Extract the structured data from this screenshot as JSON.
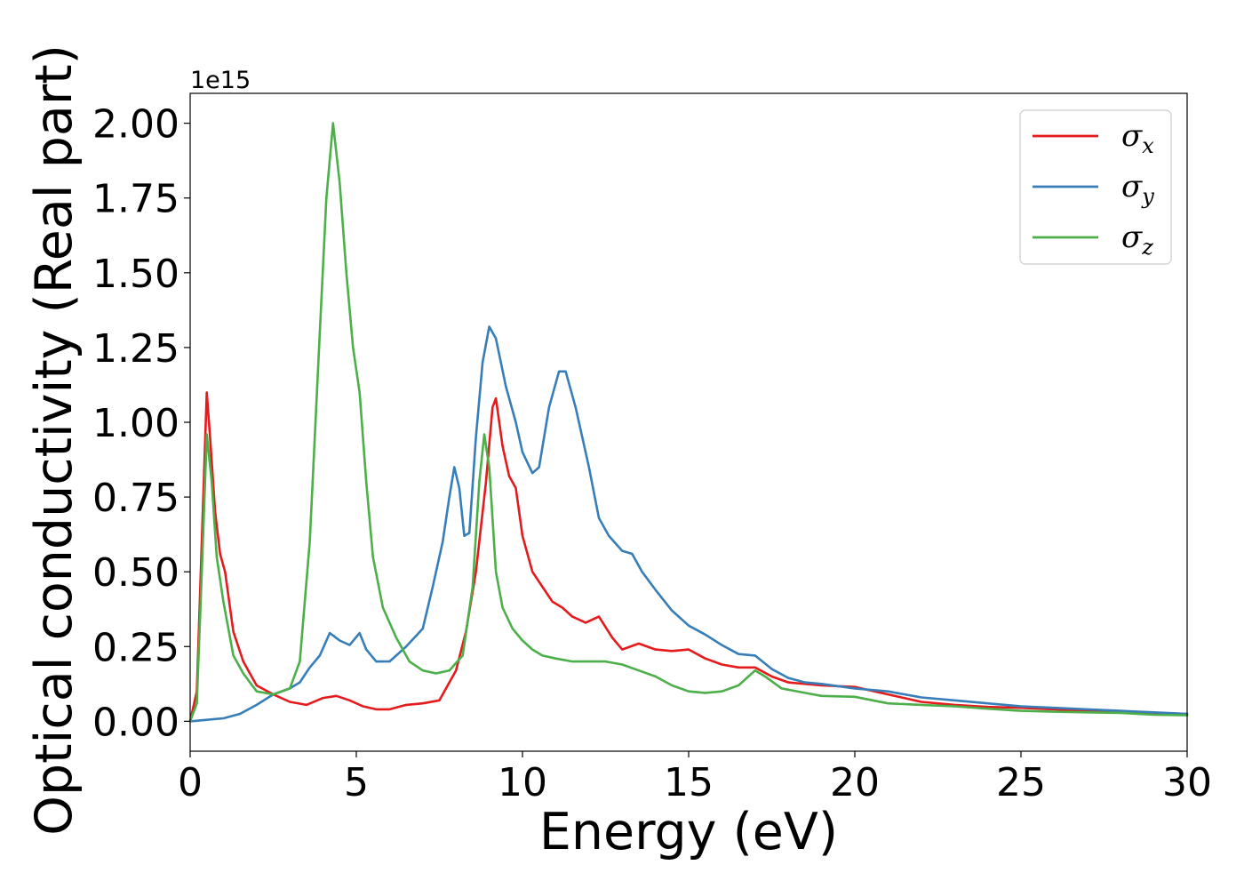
{
  "chart_data": {
    "type": "line",
    "title": "",
    "xlabel": "Energy (eV)",
    "ylabel": "Optical conductivity (Real part)",
    "y_offset_label": "1e15",
    "xlim": [
      0,
      30
    ],
    "ylim": [
      -0.1,
      2.1
    ],
    "x_ticks": [
      0,
      5,
      10,
      15,
      20,
      25,
      30
    ],
    "x_tick_labels": [
      "0",
      "5",
      "10",
      "15",
      "20",
      "25",
      "30"
    ],
    "y_ticks": [
      0,
      0.25,
      0.5,
      0.75,
      1.0,
      1.25,
      1.5,
      1.75,
      2.0
    ],
    "y_tick_labels": [
      "0.00",
      "0.25",
      "0.50",
      "0.75",
      "1.00",
      "1.25",
      "1.50",
      "1.75",
      "2.00"
    ],
    "grid": false,
    "legend_position": "top-right",
    "series": [
      {
        "name": "σx",
        "symbol": "σ",
        "subscript": "x",
        "color": "#e41a1c",
        "points": [
          [
            0,
            0
          ],
          [
            0.2,
            0.1
          ],
          [
            0.35,
            0.6
          ],
          [
            0.5,
            1.1
          ],
          [
            0.6,
            0.95
          ],
          [
            0.75,
            0.7
          ],
          [
            0.9,
            0.56
          ],
          [
            1.05,
            0.5
          ],
          [
            1.3,
            0.3
          ],
          [
            1.6,
            0.2
          ],
          [
            2,
            0.12
          ],
          [
            2.5,
            0.09
          ],
          [
            3,
            0.065
          ],
          [
            3.5,
            0.055
          ],
          [
            4,
            0.078
          ],
          [
            4.4,
            0.085
          ],
          [
            4.8,
            0.07
          ],
          [
            5.2,
            0.05
          ],
          [
            5.6,
            0.04
          ],
          [
            6,
            0.04
          ],
          [
            6.5,
            0.055
          ],
          [
            7,
            0.06
          ],
          [
            7.5,
            0.07
          ],
          [
            8,
            0.17
          ],
          [
            8.3,
            0.3
          ],
          [
            8.6,
            0.5
          ],
          [
            8.9,
            0.8
          ],
          [
            9.1,
            1.05
          ],
          [
            9.2,
            1.08
          ],
          [
            9.4,
            0.92
          ],
          [
            9.6,
            0.82
          ],
          [
            9.8,
            0.78
          ],
          [
            10,
            0.62
          ],
          [
            10.3,
            0.5
          ],
          [
            10.6,
            0.45
          ],
          [
            10.9,
            0.4
          ],
          [
            11.2,
            0.38
          ],
          [
            11.5,
            0.35
          ],
          [
            11.9,
            0.33
          ],
          [
            12.3,
            0.35
          ],
          [
            12.7,
            0.28
          ],
          [
            13,
            0.24
          ],
          [
            13.5,
            0.26
          ],
          [
            14,
            0.24
          ],
          [
            14.5,
            0.235
          ],
          [
            15,
            0.24
          ],
          [
            15.5,
            0.21
          ],
          [
            16,
            0.19
          ],
          [
            16.5,
            0.18
          ],
          [
            17,
            0.18
          ],
          [
            17.5,
            0.15
          ],
          [
            18,
            0.13
          ],
          [
            19,
            0.12
          ],
          [
            20,
            0.115
          ],
          [
            21,
            0.09
          ],
          [
            22,
            0.065
          ],
          [
            23,
            0.055
          ],
          [
            24,
            0.048
          ],
          [
            25,
            0.045
          ],
          [
            26,
            0.04
          ],
          [
            27,
            0.035
          ],
          [
            28,
            0.032
          ],
          [
            29,
            0.028
          ],
          [
            30,
            0.025
          ]
        ]
      },
      {
        "name": "σy",
        "symbol": "σ",
        "subscript": "y",
        "color": "#377eb8",
        "points": [
          [
            0,
            0
          ],
          [
            0.5,
            0.005
          ],
          [
            1,
            0.01
          ],
          [
            1.5,
            0.025
          ],
          [
            2,
            0.055
          ],
          [
            2.5,
            0.09
          ],
          [
            3,
            0.11
          ],
          [
            3.3,
            0.13
          ],
          [
            3.6,
            0.18
          ],
          [
            3.9,
            0.22
          ],
          [
            4.2,
            0.295
          ],
          [
            4.5,
            0.27
          ],
          [
            4.8,
            0.255
          ],
          [
            5.1,
            0.295
          ],
          [
            5.3,
            0.24
          ],
          [
            5.6,
            0.2
          ],
          [
            6,
            0.2
          ],
          [
            6.5,
            0.25
          ],
          [
            7,
            0.31
          ],
          [
            7.3,
            0.45
          ],
          [
            7.6,
            0.6
          ],
          [
            7.8,
            0.75
          ],
          [
            7.95,
            0.85
          ],
          [
            8.1,
            0.78
          ],
          [
            8.25,
            0.62
          ],
          [
            8.4,
            0.63
          ],
          [
            8.6,
            0.95
          ],
          [
            8.8,
            1.2
          ],
          [
            9,
            1.32
          ],
          [
            9.2,
            1.28
          ],
          [
            9.5,
            1.12
          ],
          [
            9.8,
            1.0
          ],
          [
            10,
            0.9
          ],
          [
            10.3,
            0.83
          ],
          [
            10.5,
            0.85
          ],
          [
            10.8,
            1.05
          ],
          [
            11.1,
            1.17
          ],
          [
            11.3,
            1.17
          ],
          [
            11.6,
            1.05
          ],
          [
            12,
            0.85
          ],
          [
            12.3,
            0.68
          ],
          [
            12.6,
            0.62
          ],
          [
            13,
            0.57
          ],
          [
            13.3,
            0.56
          ],
          [
            13.6,
            0.5
          ],
          [
            14,
            0.44
          ],
          [
            14.5,
            0.37
          ],
          [
            15,
            0.32
          ],
          [
            15.5,
            0.29
          ],
          [
            16,
            0.255
          ],
          [
            16.5,
            0.225
          ],
          [
            17,
            0.22
          ],
          [
            17.5,
            0.175
          ],
          [
            18,
            0.145
          ],
          [
            18.5,
            0.13
          ],
          [
            19,
            0.125
          ],
          [
            20,
            0.11
          ],
          [
            21,
            0.1
          ],
          [
            22,
            0.08
          ],
          [
            23,
            0.07
          ],
          [
            24,
            0.06
          ],
          [
            25,
            0.05
          ],
          [
            26,
            0.045
          ],
          [
            27,
            0.04
          ],
          [
            28,
            0.035
          ],
          [
            29,
            0.03
          ],
          [
            30,
            0.025
          ]
        ]
      },
      {
        "name": "σz",
        "symbol": "σ",
        "subscript": "z",
        "color": "#4daf4a",
        "points": [
          [
            0,
            0
          ],
          [
            0.2,
            0.06
          ],
          [
            0.35,
            0.5
          ],
          [
            0.5,
            0.96
          ],
          [
            0.65,
            0.8
          ],
          [
            0.8,
            0.55
          ],
          [
            1,
            0.4
          ],
          [
            1.3,
            0.22
          ],
          [
            1.6,
            0.16
          ],
          [
            2,
            0.1
          ],
          [
            2.5,
            0.09
          ],
          [
            3,
            0.11
          ],
          [
            3.3,
            0.2
          ],
          [
            3.6,
            0.6
          ],
          [
            3.9,
            1.3
          ],
          [
            4.1,
            1.75
          ],
          [
            4.3,
            2.0
          ],
          [
            4.5,
            1.8
          ],
          [
            4.7,
            1.5
          ],
          [
            4.9,
            1.25
          ],
          [
            5.1,
            1.1
          ],
          [
            5.3,
            0.8
          ],
          [
            5.5,
            0.55
          ],
          [
            5.8,
            0.38
          ],
          [
            6.2,
            0.28
          ],
          [
            6.6,
            0.2
          ],
          [
            7,
            0.17
          ],
          [
            7.4,
            0.16
          ],
          [
            7.8,
            0.17
          ],
          [
            8.2,
            0.22
          ],
          [
            8.5,
            0.45
          ],
          [
            8.7,
            0.8
          ],
          [
            8.85,
            0.96
          ],
          [
            9,
            0.85
          ],
          [
            9.2,
            0.5
          ],
          [
            9.4,
            0.38
          ],
          [
            9.7,
            0.31
          ],
          [
            10,
            0.27
          ],
          [
            10.3,
            0.24
          ],
          [
            10.6,
            0.22
          ],
          [
            11,
            0.21
          ],
          [
            11.5,
            0.2
          ],
          [
            12,
            0.2
          ],
          [
            12.5,
            0.2
          ],
          [
            13,
            0.19
          ],
          [
            13.5,
            0.17
          ],
          [
            14,
            0.15
          ],
          [
            14.5,
            0.12
          ],
          [
            15,
            0.1
          ],
          [
            15.5,
            0.095
          ],
          [
            16,
            0.1
          ],
          [
            16.5,
            0.12
          ],
          [
            17,
            0.17
          ],
          [
            17.3,
            0.15
          ],
          [
            17.8,
            0.11
          ],
          [
            18.5,
            0.095
          ],
          [
            19,
            0.085
          ],
          [
            20,
            0.082
          ],
          [
            21,
            0.06
          ],
          [
            22,
            0.055
          ],
          [
            23,
            0.05
          ],
          [
            24,
            0.042
          ],
          [
            25,
            0.035
          ],
          [
            26,
            0.032
          ],
          [
            27,
            0.03
          ],
          [
            28,
            0.028
          ],
          [
            29,
            0.022
          ],
          [
            30,
            0.02
          ]
        ]
      }
    ]
  }
}
